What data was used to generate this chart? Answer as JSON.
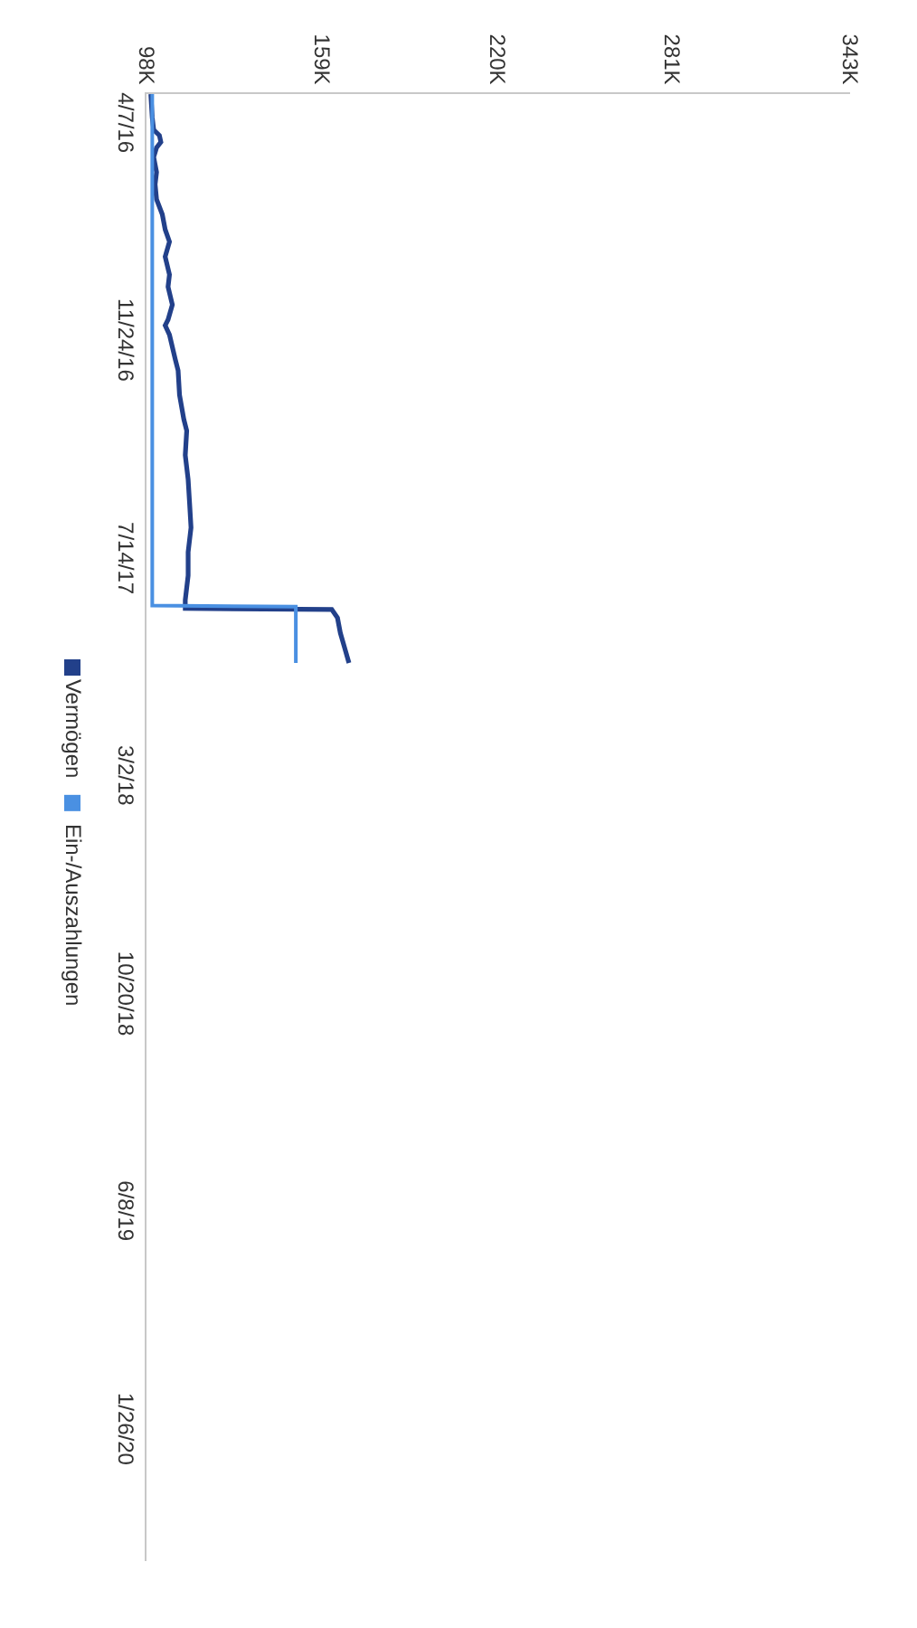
{
  "chart_data": {
    "type": "line",
    "orientation": "horizontal",
    "x": [
      "2016-03-04",
      "2016-03-29",
      "2016-04-11",
      "2016-04-17",
      "2016-04-24",
      "2016-04-30",
      "2016-05-10",
      "2016-05-26",
      "2016-06-08",
      "2016-06-24",
      "2016-07-10",
      "2016-07-26",
      "2016-08-08",
      "2016-08-24",
      "2016-09-12",
      "2016-09-25",
      "2016-10-14",
      "2016-10-30",
      "2016-11-05",
      "2016-11-15",
      "2016-12-11",
      "2016-12-23",
      "2017-01-18",
      "2017-02-13",
      "2017-02-25",
      "2017-03-23",
      "2017-04-18",
      "2017-05-13",
      "2017-06-08",
      "2017-07-04",
      "2017-07-29",
      "2017-08-24",
      "2017-09-02",
      "2017-09-03",
      "2017-09-12",
      "2017-09-28",
      "2017-10-14",
      "2017-10-30"
    ],
    "series": [
      {
        "name": "Vermögen",
        "color": "#22408a",
        "values": [
          99500,
          100000,
          100500,
          102500,
          103000,
          101500,
          100500,
          101500,
          101000,
          101500,
          103500,
          104500,
          106000,
          104500,
          106000,
          105500,
          107000,
          105500,
          104500,
          106000,
          108000,
          109000,
          109500,
          111000,
          112000,
          111500,
          112500,
          113000,
          113500,
          112500,
          112500,
          111500,
          111500,
          162500,
          164500,
          165500,
          167000,
          168500
        ]
      },
      {
        "name": "Ein-/Auszahlungen",
        "color": "#4a90e2",
        "x": [
          "2016-03-04",
          "2017-08-30",
          "2017-08-31",
          "2017-10-30"
        ],
        "values": [
          100000,
          100000,
          150000,
          150000
        ]
      }
    ],
    "xlim": [
      98000,
      343000
    ],
    "xticks": [
      {
        "value": 98000,
        "label": "98K"
      },
      {
        "value": 159000,
        "label": "159K"
      },
      {
        "value": 220000,
        "label": "220K"
      },
      {
        "value": 281000,
        "label": "281K"
      },
      {
        "value": 343000,
        "label": "343K"
      }
    ],
    "ylim": [
      "2020-06-11",
      "2016-03-04"
    ],
    "yticks": [
      {
        "value": "2016-04-07",
        "label": "4/7/16"
      },
      {
        "value": "2016-11-24",
        "label": "11/24/16"
      },
      {
        "value": "2017-07-14",
        "label": "7/14/17"
      },
      {
        "value": "2018-03-02",
        "label": "3/2/18"
      },
      {
        "value": "2018-10-20",
        "label": "10/20/18"
      },
      {
        "value": "2019-06-08",
        "label": "6/8/19"
      },
      {
        "value": "2020-01-26",
        "label": "1/26/20"
      }
    ],
    "legend": "left"
  }
}
